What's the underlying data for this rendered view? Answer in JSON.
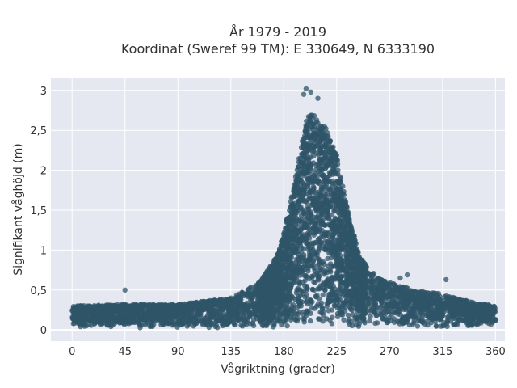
{
  "chart_data": {
    "type": "scatter",
    "title_line1": "År 1979 - 2019",
    "title_line2": "Koordinat (Sweref 99 TM): E 330649, N 6333190",
    "xlabel": "Vågriktning (grader)",
    "ylabel": "Signifikant våghöjd (m)",
    "xlim": [
      -18,
      368
    ],
    "ylim": [
      -0.14,
      3.16
    ],
    "x_ticks": [
      0,
      45,
      90,
      135,
      180,
      225,
      270,
      315,
      360
    ],
    "x_tick_labels": [
      "0",
      "45",
      "90",
      "135",
      "180",
      "225",
      "270",
      "315",
      "360"
    ],
    "y_ticks": [
      0,
      0.5,
      1,
      1.5,
      2,
      2.5,
      3
    ],
    "y_tick_labels": [
      "0",
      "0,5",
      "1",
      "1,5",
      "2",
      "2,5",
      "3"
    ],
    "grid": true,
    "legend": "none",
    "marker_color": "#2f5468",
    "background_color": "#e5e8f0",
    "envelope": {
      "x": [
        0,
        45,
        90,
        135,
        160,
        175,
        185,
        195,
        200,
        205,
        215,
        225,
        235,
        245,
        260,
        270,
        290,
        315,
        340,
        360
      ],
      "upper": [
        0.3,
        0.32,
        0.32,
        0.4,
        0.6,
        0.95,
        1.55,
        2.3,
        2.75,
        2.7,
        2.55,
        2.2,
        1.45,
        0.9,
        0.65,
        0.6,
        0.5,
        0.45,
        0.35,
        0.3
      ]
    },
    "notable_points": [
      {
        "x": 199,
        "y": 3.02
      },
      {
        "x": 203,
        "y": 2.98
      },
      {
        "x": 197,
        "y": 2.95
      },
      {
        "x": 209,
        "y": 2.9
      },
      {
        "x": 45,
        "y": 0.5
      },
      {
        "x": 318,
        "y": 0.63
      },
      {
        "x": 285,
        "y": 0.69
      },
      {
        "x": 279,
        "y": 0.65
      }
    ]
  }
}
